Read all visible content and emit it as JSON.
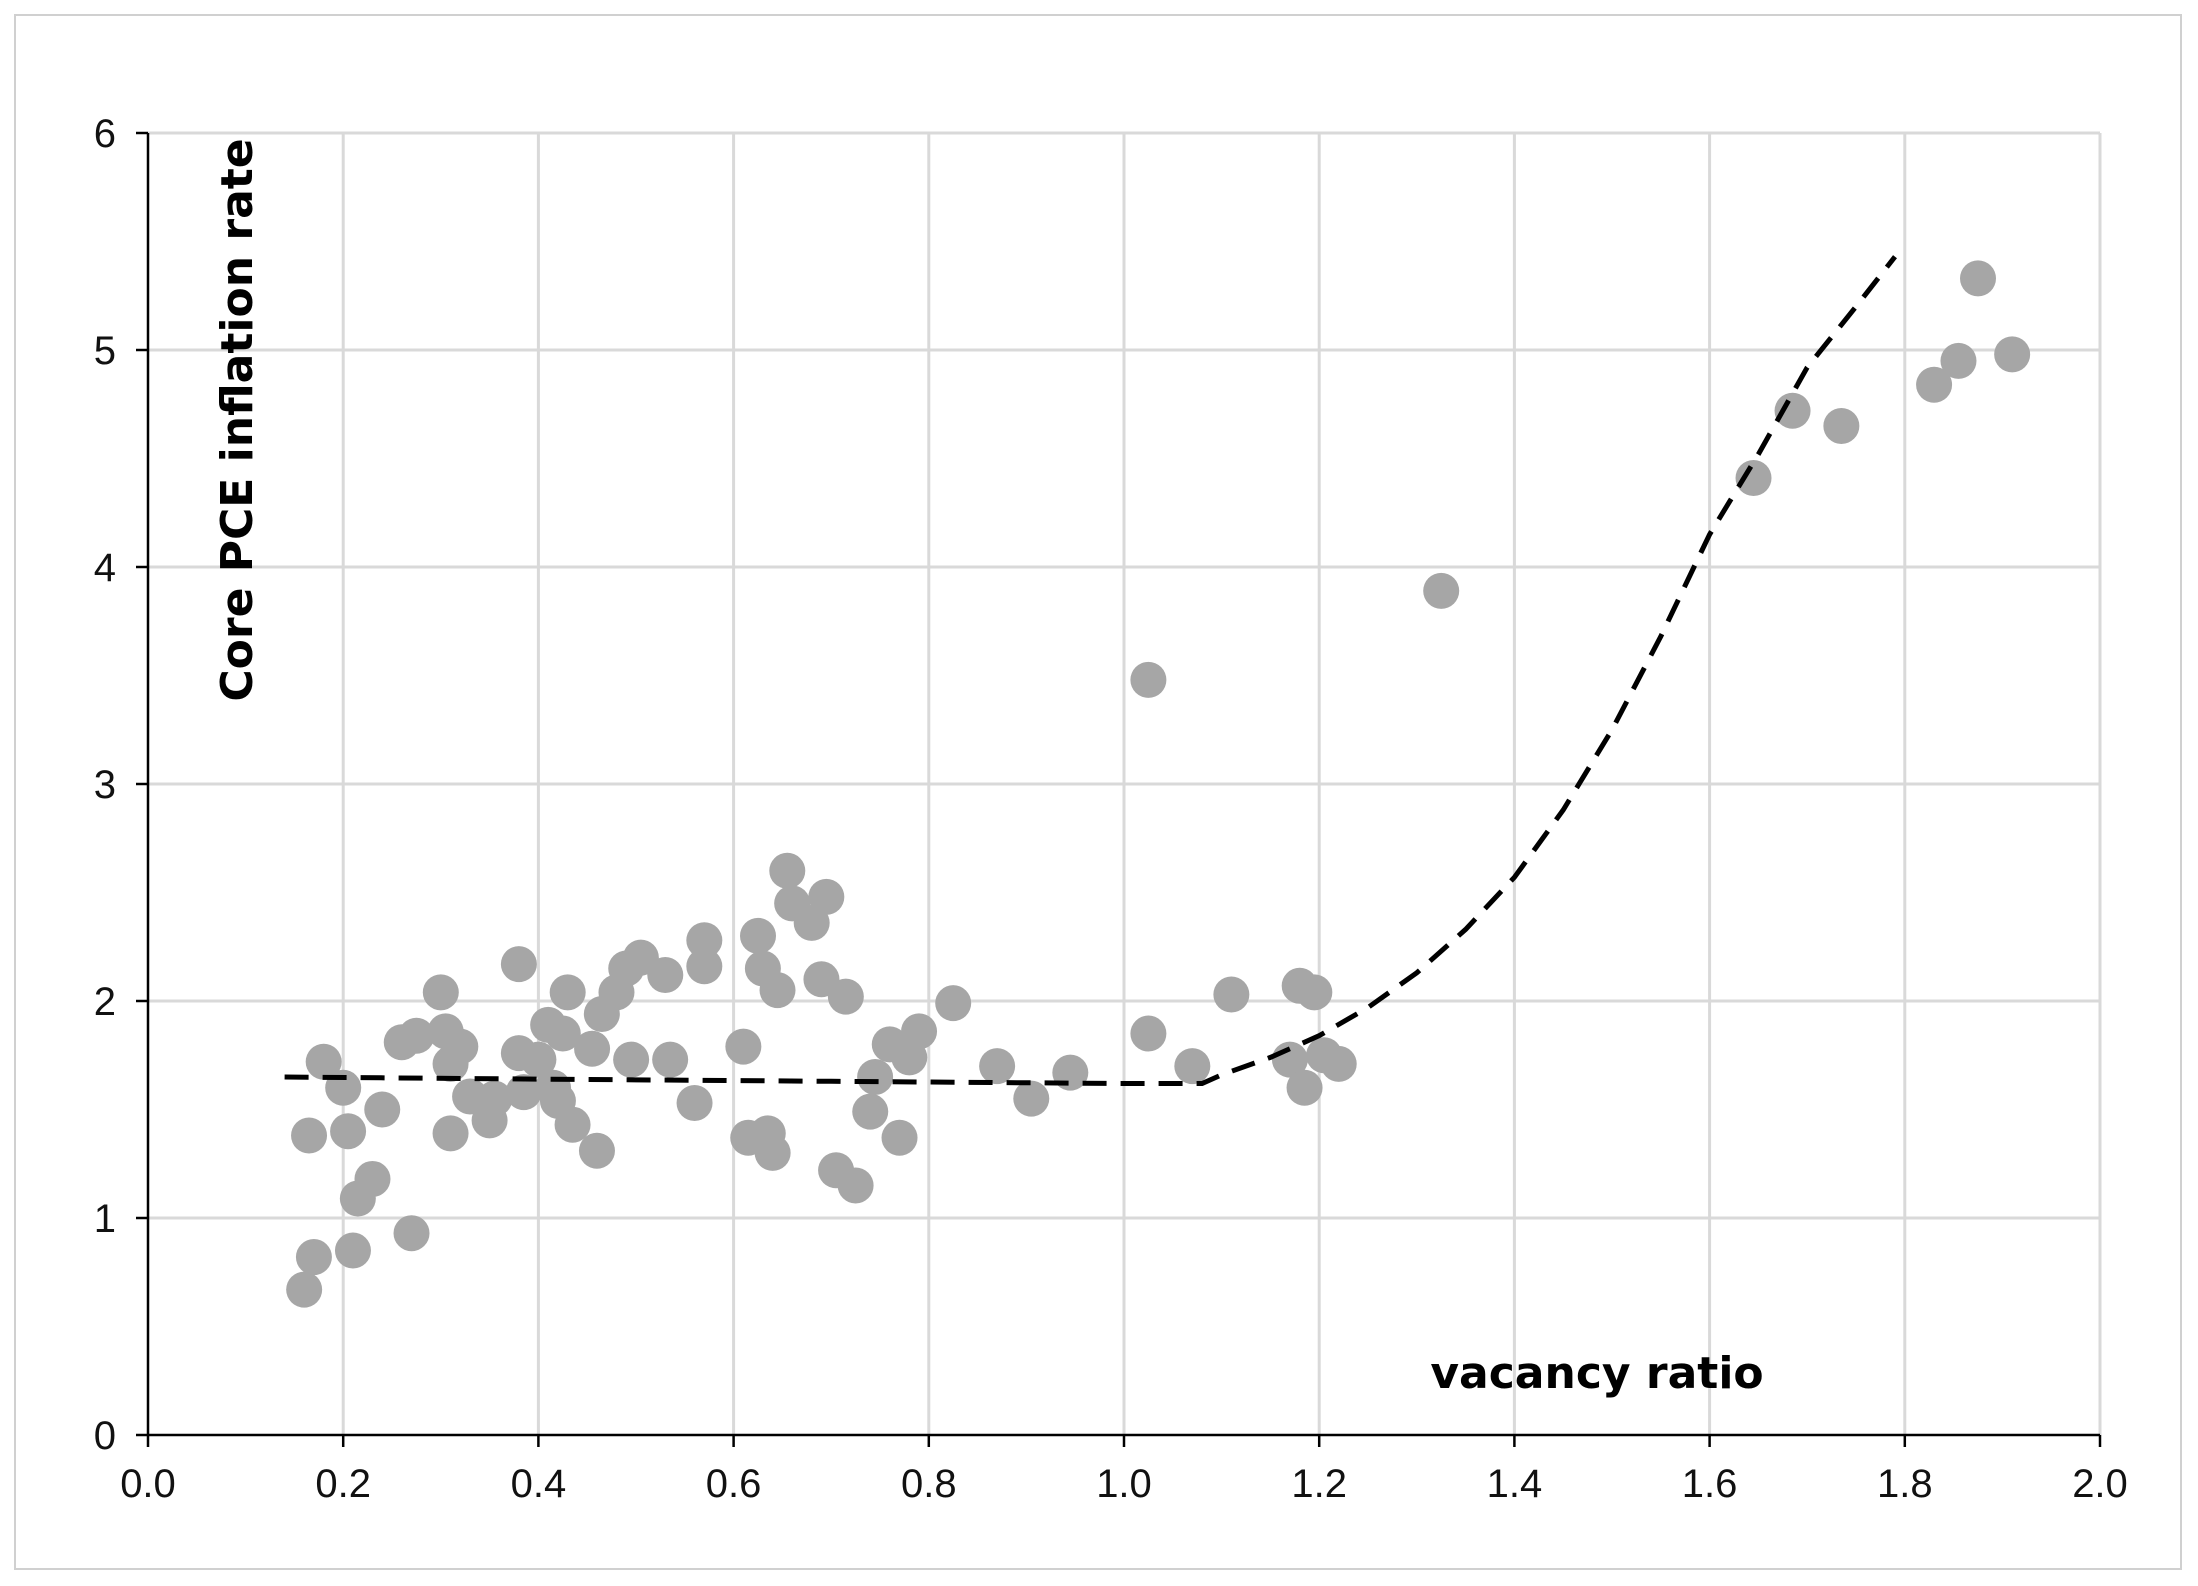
{
  "chart_data": {
    "type": "scatter",
    "xlabel": "vacancy ratio",
    "ylabel": "Core PCE inflation rate",
    "xlim": [
      0.0,
      2.0
    ],
    "ylim": [
      0,
      6
    ],
    "x_ticks": [
      "0.0",
      "0.2",
      "0.4",
      "0.6",
      "0.8",
      "1.0",
      "1.2",
      "1.4",
      "1.6",
      "1.8",
      "2.0"
    ],
    "y_ticks": [
      "0",
      "1",
      "2",
      "3",
      "4",
      "5",
      "6"
    ],
    "grid": true,
    "colors": {
      "points": "#a6a6a6",
      "fit_line": "#000000",
      "grid": "#d9d9d9",
      "axis": "#000000"
    },
    "series": [
      {
        "type": "scatter",
        "points": [
          [
            0.16,
            0.67
          ],
          [
            0.17,
            0.82
          ],
          [
            0.165,
            1.38
          ],
          [
            0.18,
            1.72
          ],
          [
            0.2,
            1.6
          ],
          [
            0.205,
            1.4
          ],
          [
            0.21,
            0.85
          ],
          [
            0.215,
            1.09
          ],
          [
            0.23,
            1.18
          ],
          [
            0.24,
            1.5
          ],
          [
            0.26,
            1.81
          ],
          [
            0.27,
            0.93
          ],
          [
            0.275,
            1.84
          ],
          [
            0.3,
            2.04
          ],
          [
            0.305,
            1.86
          ],
          [
            0.31,
            1.39
          ],
          [
            0.31,
            1.71
          ],
          [
            0.32,
            1.79
          ],
          [
            0.33,
            1.56
          ],
          [
            0.35,
            1.45
          ],
          [
            0.355,
            1.55
          ],
          [
            0.38,
            1.76
          ],
          [
            0.38,
            2.17
          ],
          [
            0.385,
            1.58
          ],
          [
            0.4,
            1.73
          ],
          [
            0.41,
            1.89
          ],
          [
            0.415,
            1.6
          ],
          [
            0.42,
            1.54
          ],
          [
            0.425,
            1.85
          ],
          [
            0.43,
            2.04
          ],
          [
            0.435,
            1.43
          ],
          [
            0.455,
            1.78
          ],
          [
            0.46,
            1.31
          ],
          [
            0.465,
            1.94
          ],
          [
            0.48,
            2.04
          ],
          [
            0.49,
            2.15
          ],
          [
            0.495,
            1.73
          ],
          [
            0.505,
            2.2
          ],
          [
            0.53,
            2.12
          ],
          [
            0.535,
            1.73
          ],
          [
            0.56,
            1.53
          ],
          [
            0.57,
            2.28
          ],
          [
            0.57,
            2.16
          ],
          [
            0.61,
            1.79
          ],
          [
            0.615,
            1.37
          ],
          [
            0.625,
            2.3
          ],
          [
            0.63,
            2.15
          ],
          [
            0.635,
            1.39
          ],
          [
            0.64,
            1.3
          ],
          [
            0.645,
            2.05
          ],
          [
            0.655,
            2.6
          ],
          [
            0.66,
            2.45
          ],
          [
            0.68,
            2.36
          ],
          [
            0.69,
            2.1
          ],
          [
            0.695,
            2.48
          ],
          [
            0.705,
            1.22
          ],
          [
            0.715,
            2.02
          ],
          [
            0.725,
            1.15
          ],
          [
            0.74,
            1.49
          ],
          [
            0.745,
            1.65
          ],
          [
            0.76,
            1.8
          ],
          [
            0.77,
            1.37
          ],
          [
            0.78,
            1.74
          ],
          [
            0.79,
            1.86
          ],
          [
            0.825,
            1.99
          ],
          [
            0.87,
            1.7
          ],
          [
            0.905,
            1.55
          ],
          [
            0.945,
            1.67
          ],
          [
            1.025,
            1.85
          ],
          [
            1.025,
            3.48
          ],
          [
            1.07,
            1.7
          ],
          [
            1.11,
            2.03
          ],
          [
            1.17,
            1.73
          ],
          [
            1.18,
            2.07
          ],
          [
            1.185,
            1.6
          ],
          [
            1.195,
            2.04
          ],
          [
            1.205,
            1.75
          ],
          [
            1.22,
            1.71
          ],
          [
            1.325,
            3.89
          ],
          [
            1.645,
            4.41
          ],
          [
            1.685,
            4.72
          ],
          [
            1.735,
            4.65
          ],
          [
            1.83,
            4.84
          ],
          [
            1.855,
            4.95
          ],
          [
            1.875,
            5.33
          ],
          [
            1.91,
            4.98
          ]
        ]
      },
      {
        "type": "line",
        "style": "dashed",
        "points": [
          [
            0.14,
            1.65
          ],
          [
            0.4,
            1.64
          ],
          [
            0.7,
            1.63
          ],
          [
            1.0,
            1.62
          ],
          [
            1.08,
            1.62
          ],
          [
            1.1,
            1.66
          ],
          [
            1.15,
            1.74
          ],
          [
            1.2,
            1.84
          ],
          [
            1.25,
            1.97
          ],
          [
            1.3,
            2.13
          ],
          [
            1.35,
            2.33
          ],
          [
            1.4,
            2.57
          ],
          [
            1.45,
            2.88
          ],
          [
            1.5,
            3.25
          ],
          [
            1.55,
            3.68
          ],
          [
            1.6,
            4.15
          ],
          [
            1.65,
            4.52
          ],
          [
            1.7,
            4.92
          ],
          [
            1.75,
            5.2
          ],
          [
            1.79,
            5.43
          ]
        ]
      }
    ]
  }
}
